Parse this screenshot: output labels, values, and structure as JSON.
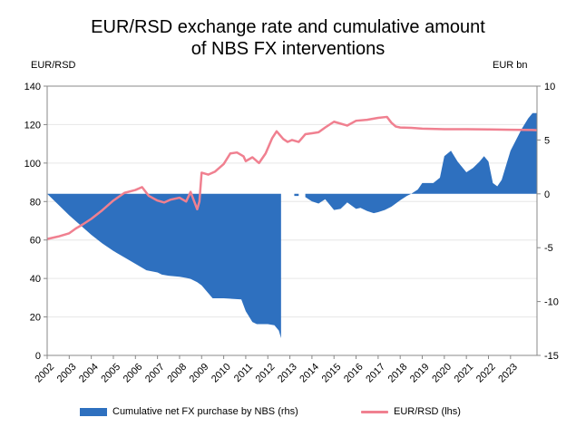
{
  "title_line1": "EUR/RSD exchange rate and cumulative amount",
  "title_line2": "of NBS FX interventions",
  "chart_data": {
    "type": "line",
    "title": "EUR/RSD exchange rate and cumulative amount of NBS FX interventions",
    "left_axis": {
      "unit_label": "EUR/RSD",
      "ylim": [
        0,
        140
      ],
      "ticks": [
        0,
        20,
        40,
        60,
        80,
        100,
        120,
        140
      ]
    },
    "right_axis": {
      "unit_label": "EUR bn",
      "ylim": [
        -15,
        10
      ],
      "ticks": [
        -15,
        -10,
        -5,
        0,
        5,
        10
      ]
    },
    "x_ticks": [
      "2002",
      "2003",
      "2004",
      "2005",
      "2006",
      "2007",
      "2008",
      "2009",
      "2010",
      "2011",
      "2012",
      "2013",
      "2014",
      "2015",
      "2016",
      "2017",
      "2018",
      "2019",
      "2020",
      "2021",
      "2022",
      "2023"
    ],
    "xlim": [
      2002,
      2024.2
    ],
    "grid": "horizontal",
    "legend_position": "bottom",
    "colors": {
      "area": "#2e70bf",
      "line": "#f08090",
      "grid": "#e6e6e6"
    },
    "series": [
      {
        "name": "Cumulative net FX purchase by NBS (rhs)",
        "type": "area",
        "axis": "right",
        "x": [
          2002.0,
          2002.5,
          2003.0,
          2003.5,
          2004.0,
          2004.5,
          2005.0,
          2005.5,
          2006.0,
          2006.5,
          2007.0,
          2007.2,
          2007.5,
          2008.0,
          2008.3,
          2008.5,
          2008.8,
          2009.0,
          2009.5,
          2010.0,
          2010.8,
          2011.0,
          2011.3,
          2011.5,
          2012.0,
          2012.3,
          2012.5,
          2012.6,
          2012.6,
          2013.2,
          2013.2,
          2013.4,
          2013.4,
          2013.7,
          2013.7,
          2014.0,
          2014.3,
          2014.6,
          2015.0,
          2015.3,
          2015.6,
          2016.0,
          2016.2,
          2016.5,
          2016.8,
          2017.0,
          2017.3,
          2017.6,
          2018.0,
          2018.3,
          2018.5,
          2018.8,
          2019.0,
          2019.5,
          2019.8,
          2020.0,
          2020.3,
          2020.6,
          2021.0,
          2021.3,
          2021.6,
          2021.8,
          2022.0,
          2022.2,
          2022.4,
          2022.6,
          2023.0,
          2023.5,
          2023.8,
          2024.0,
          2024.2
        ],
        "values": [
          0,
          -1.0,
          -2.0,
          -2.9,
          -3.8,
          -4.6,
          -5.3,
          -5.9,
          -6.5,
          -7.1,
          -7.3,
          -7.5,
          -7.6,
          -7.7,
          -7.8,
          -7.9,
          -8.2,
          -8.5,
          -9.7,
          -9.7,
          -9.8,
          -10.9,
          -11.9,
          -12.1,
          -12.1,
          -12.2,
          -12.7,
          -13.4,
          0,
          0,
          -0.2,
          -0.2,
          0,
          0,
          -0.3,
          -0.7,
          -0.9,
          -0.5,
          -1.5,
          -1.4,
          -0.8,
          -1.4,
          -1.3,
          -1.6,
          -1.8,
          -1.7,
          -1.5,
          -1.2,
          -0.6,
          -0.2,
          0,
          0.4,
          1.0,
          1.0,
          1.5,
          3.5,
          4.0,
          3.0,
          2.0,
          2.4,
          3.0,
          3.5,
          3.0,
          1.0,
          0.7,
          1.3,
          4.0,
          6.0,
          7.0,
          7.5,
          7.5
        ]
      },
      {
        "name": "EUR/RSD (lhs)",
        "type": "line",
        "axis": "left",
        "x": [
          2002.0,
          2002.5,
          2003.0,
          2003.3,
          2003.6,
          2004.0,
          2004.5,
          2005.0,
          2005.5,
          2006.0,
          2006.3,
          2006.6,
          2007.0,
          2007.3,
          2007.6,
          2008.0,
          2008.3,
          2008.5,
          2008.8,
          2008.9,
          2009.0,
          2009.3,
          2009.6,
          2010.0,
          2010.3,
          2010.6,
          2010.9,
          2011.0,
          2011.3,
          2011.6,
          2011.9,
          2012.2,
          2012.4,
          2012.7,
          2012.9,
          2013.1,
          2013.4,
          2013.7,
          2014.0,
          2014.3,
          2014.6,
          2015.0,
          2015.3,
          2015.6,
          2016.0,
          2016.5,
          2017.0,
          2017.4,
          2017.6,
          2017.8,
          2018.0,
          2018.5,
          2019.0,
          2020.0,
          2021.0,
          2022.0,
          2023.0,
          2024.0,
          2024.2
        ],
        "values": [
          60.5,
          61.8,
          63.5,
          66.0,
          68.0,
          71.0,
          75.5,
          80.5,
          84.5,
          86.0,
          87.5,
          83.0,
          80.5,
          79.5,
          81.0,
          82.0,
          80.0,
          85.0,
          76.0,
          80.0,
          95.0,
          94.0,
          95.5,
          99.5,
          105.0,
          105.5,
          103.5,
          101.0,
          103.0,
          100.0,
          105.0,
          113.0,
          116.5,
          112.5,
          111.0,
          112.0,
          111.0,
          115.0,
          115.5,
          116.0,
          118.5,
          121.5,
          120.5,
          119.5,
          122.0,
          122.5,
          123.5,
          124.0,
          121.0,
          119.0,
          118.5,
          118.3,
          117.9,
          117.6,
          117.6,
          117.5,
          117.3,
          117.2,
          117.1
        ]
      }
    ]
  }
}
